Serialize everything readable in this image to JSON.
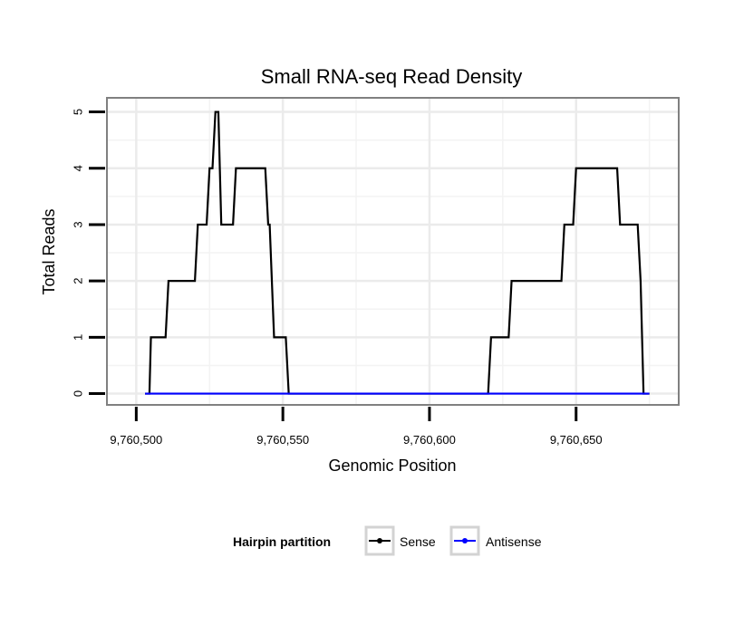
{
  "chart_data": {
    "type": "line",
    "title": "Small RNA-seq Read Density",
    "xlabel": "Genomic Position",
    "ylabel": "Total Reads",
    "xlim": [
      9760490,
      9760685
    ],
    "ylim": [
      -0.2,
      5.25
    ],
    "x_ticks": [
      9760500,
      9760550,
      9760600,
      9760650
    ],
    "x_tick_labels": [
      "9,760,500",
      "9,760,550",
      "9,760,600",
      "9,760,650"
    ],
    "y_ticks": [
      0,
      1,
      2,
      3,
      4,
      5
    ],
    "y_tick_labels": [
      "0",
      "1",
      "2",
      "3",
      "4",
      "5"
    ],
    "grid": true,
    "legend": {
      "title": "Hairpin partition",
      "position": "bottom"
    },
    "series": [
      {
        "name": "Sense",
        "color": "#000000",
        "points": [
          [
            9760503,
            0
          ],
          [
            9760504.5,
            0
          ],
          [
            9760505,
            1
          ],
          [
            9760510,
            1
          ],
          [
            9760511,
            2
          ],
          [
            9760520,
            2
          ],
          [
            9760521,
            3
          ],
          [
            9760524,
            3
          ],
          [
            9760525,
            4
          ],
          [
            9760526,
            4
          ],
          [
            9760527,
            5
          ],
          [
            9760528,
            5
          ],
          [
            9760529,
            3
          ],
          [
            9760533,
            3
          ],
          [
            9760534,
            4
          ],
          [
            9760544,
            4
          ],
          [
            9760545,
            3
          ],
          [
            9760545.5,
            3
          ],
          [
            9760547,
            1
          ],
          [
            9760551,
            1
          ],
          [
            9760552,
            0
          ],
          [
            9760620,
            0
          ],
          [
            9760621,
            1
          ],
          [
            9760627,
            1
          ],
          [
            9760628,
            2
          ],
          [
            9760645,
            2
          ],
          [
            9760646,
            3
          ],
          [
            9760649,
            3
          ],
          [
            9760650,
            4
          ],
          [
            9760664,
            4
          ],
          [
            9760665,
            3
          ],
          [
            9760671,
            3
          ],
          [
            9760672,
            2
          ],
          [
            9760673,
            0
          ],
          [
            9760675,
            0
          ]
        ]
      },
      {
        "name": "Antisense",
        "color": "#0000ff",
        "points": [
          [
            9760503,
            0
          ],
          [
            9760675,
            0
          ]
        ]
      }
    ]
  }
}
